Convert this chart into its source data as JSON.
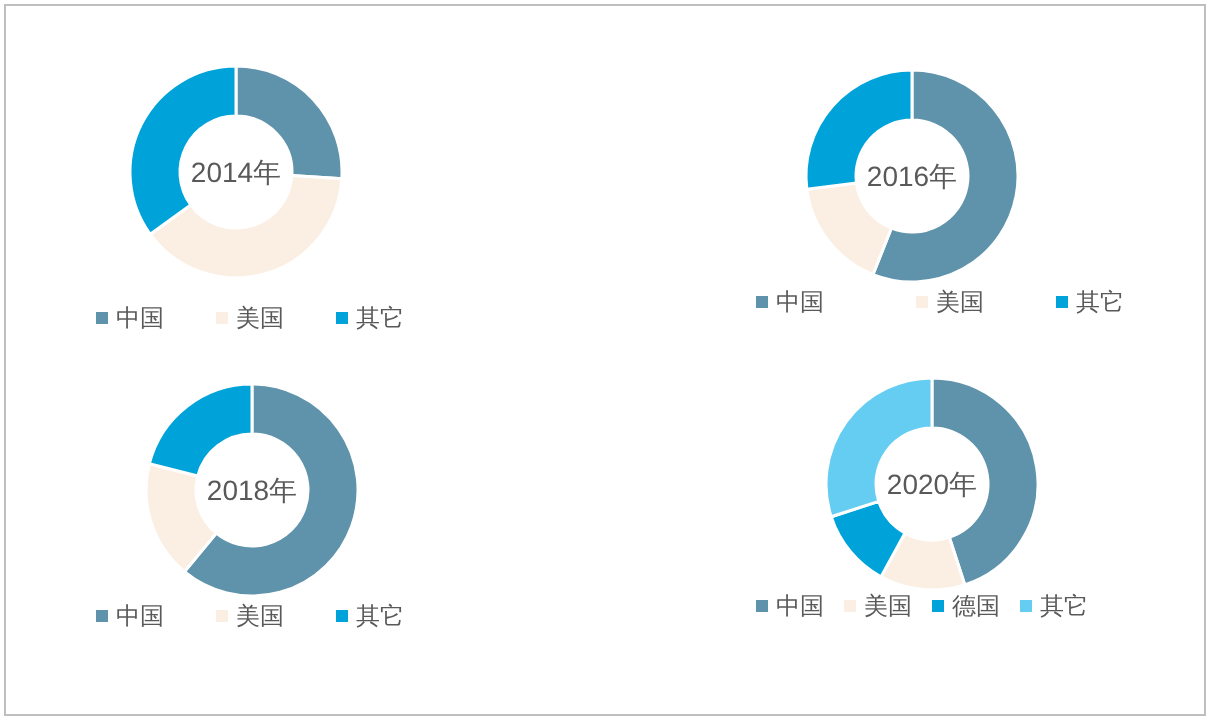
{
  "chart_data": [
    {
      "type": "donut",
      "title": "2014年",
      "categories": [
        "中国",
        "美国",
        "其它"
      ],
      "values": [
        26,
        39,
        35
      ],
      "colors": [
        "#5e93ab",
        "#fbefe4",
        "#00a3d9"
      ],
      "legend": "bottom"
    },
    {
      "type": "donut",
      "title": "2016年",
      "categories": [
        "中国",
        "美国",
        "其它"
      ],
      "values": [
        56,
        17,
        27
      ],
      "colors": [
        "#5e93ab",
        "#fbefe4",
        "#00a3d9"
      ],
      "legend": "bottom"
    },
    {
      "type": "donut",
      "title": "2018年",
      "categories": [
        "中国",
        "美国",
        "其它"
      ],
      "values": [
        61,
        18,
        21
      ],
      "colors": [
        "#5e93ab",
        "#fbefe4",
        "#00a3d9"
      ],
      "legend": "bottom"
    },
    {
      "type": "donut",
      "title": "2020年",
      "categories": [
        "中国",
        "美国",
        "德国",
        "其它"
      ],
      "values": [
        45,
        13,
        12,
        30
      ],
      "colors": [
        "#5e93ab",
        "#fbefe4",
        "#00a3d9",
        "#66cdf2"
      ],
      "legend": "bottom"
    }
  ]
}
